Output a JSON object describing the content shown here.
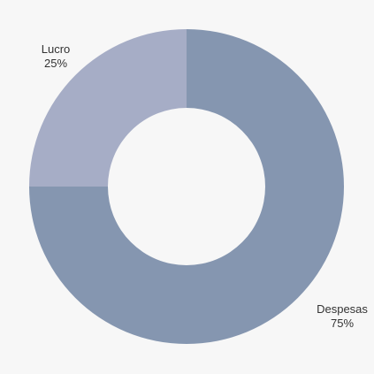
{
  "chart_data": {
    "type": "pie",
    "donut": true,
    "slices": [
      {
        "label": "Lucro",
        "value": 25,
        "percent_label": "25%",
        "color": "#a6adc6"
      },
      {
        "label": "Despesas",
        "value": 75,
        "percent_label": "75%",
        "color": "#8596b0"
      }
    ]
  }
}
